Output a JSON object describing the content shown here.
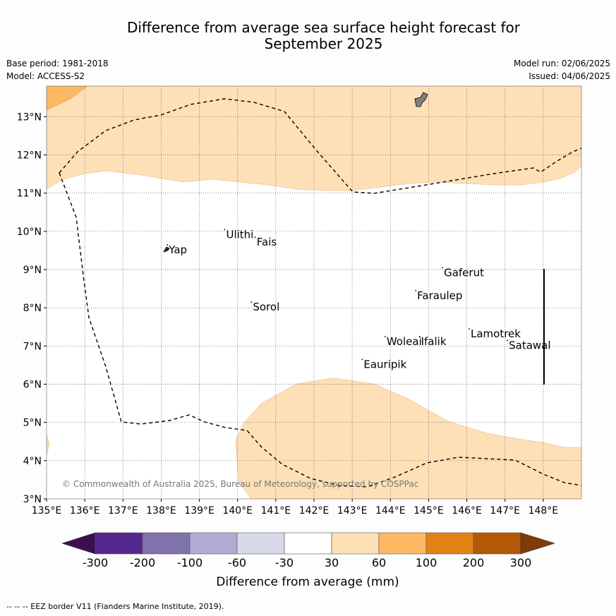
{
  "title_line1": "Difference from average sea surface height forecast for",
  "title_line2": "September 2025",
  "base_period": "Base period: 1981-2018",
  "model": "Model: ACCESS-S2",
  "model_run": "Model run: 02/06/2025",
  "issued": "Issued: 04/06/2025",
  "copyright": "© Commonwealth of Australia 2025, Bureau of Meteorology, supported by COSPPac",
  "footnote": "--  --  -- EEZ border V11 (Flanders Marine Institute, 2019).",
  "map": {
    "lon_range": [
      135,
      149
    ],
    "lat_range": [
      3,
      13.8
    ],
    "lon_ticks": [
      "135°E",
      "136°E",
      "137°E",
      "138°E",
      "139°E",
      "140°E",
      "141°E",
      "142°E",
      "143°E",
      "144°E",
      "145°E",
      "146°E",
      "147°E",
      "148°E"
    ],
    "lat_ticks": [
      "3°N",
      "4°N",
      "5°N",
      "6°N",
      "7°N",
      "8°N",
      "9°N",
      "10°N",
      "11°N",
      "12°N",
      "13°N"
    ],
    "places": [
      {
        "name": "Yap",
        "lon": 138.2,
        "lat": 9.5
      },
      {
        "name": "Ulithi",
        "lon": 139.7,
        "lat": 9.9
      },
      {
        "name": "Fais",
        "lon": 140.5,
        "lat": 9.7
      },
      {
        "name": "Sorol",
        "lon": 140.4,
        "lat": 8.0
      },
      {
        "name": "Gaferut",
        "lon": 145.4,
        "lat": 8.9
      },
      {
        "name": "Faraulep",
        "lon": 144.7,
        "lat": 8.3
      },
      {
        "name": "Woleai",
        "lon": 143.9,
        "lat": 7.1
      },
      {
        "name": "Ifalik",
        "lon": 144.8,
        "lat": 7.1
      },
      {
        "name": "Lamotrek",
        "lon": 146.1,
        "lat": 7.3
      },
      {
        "name": "Satawal",
        "lon": 147.1,
        "lat": 7.0
      },
      {
        "name": "Eauripik",
        "lon": 143.3,
        "lat": 6.5
      }
    ]
  },
  "colorbar": {
    "label": "Difference from average (mm)",
    "ticks": [
      "-300",
      "-200",
      "-100",
      "-60",
      "-30",
      "30",
      "60",
      "100",
      "200",
      "300"
    ],
    "colors": [
      "#3b0f4f",
      "#54278f",
      "#8073ac",
      "#b2abd2",
      "#d8daeb",
      "#ffffff",
      "#fee0b6",
      "#fdb863",
      "#e08214",
      "#b35806",
      "#7f3b08"
    ]
  },
  "colors": {
    "band_30_60": "#fee0b6",
    "band_60_100": "#fdb863"
  }
}
